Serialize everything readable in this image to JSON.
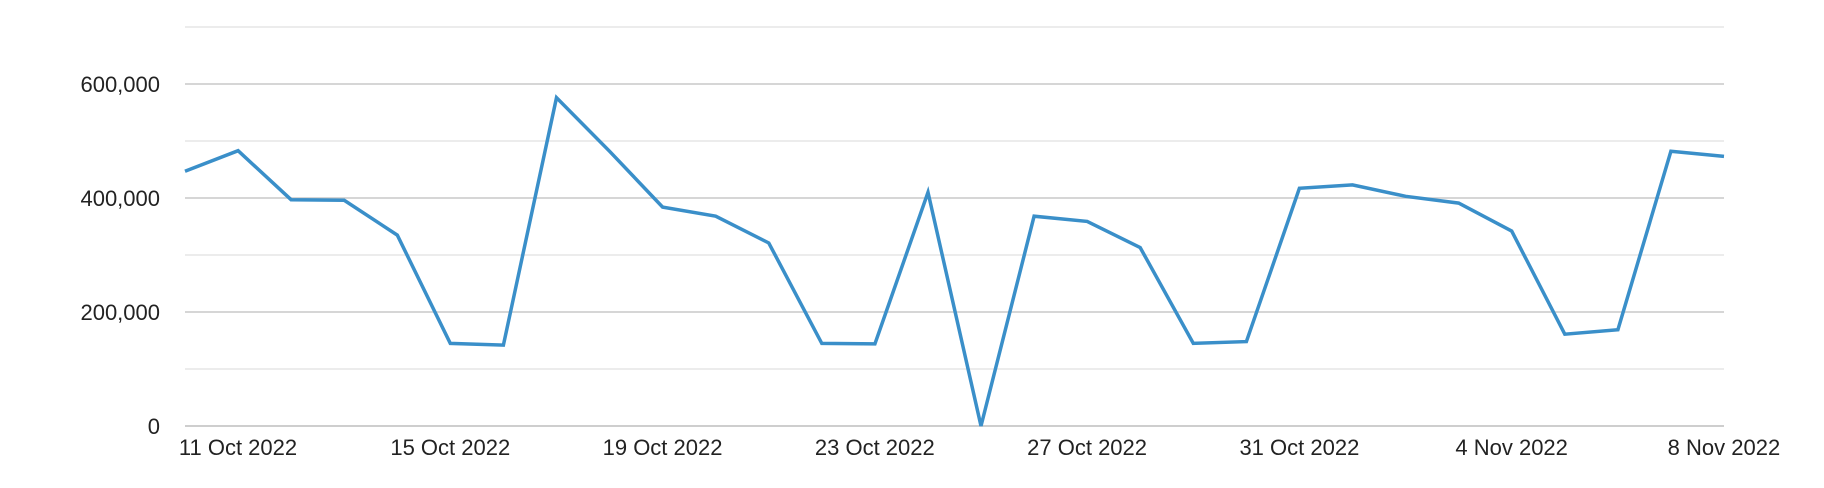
{
  "chart_data": {
    "type": "line",
    "title": "",
    "xlabel": "",
    "ylabel": "",
    "x": [
      "11 Oct 2022",
      "12 Oct 2022",
      "13 Oct 2022",
      "14 Oct 2022",
      "15 Oct 2022",
      "16 Oct 2022",
      "17 Oct 2022",
      "18 Oct 2022",
      "19 Oct 2022",
      "20 Oct 2022",
      "21 Oct 2022",
      "22 Oct 2022",
      "23 Oct 2022",
      "24 Oct 2022",
      "25 Oct 2022",
      "26 Oct 2022",
      "27 Oct 2022",
      "28 Oct 2022",
      "29 Oct 2022",
      "30 Oct 2022",
      "31 Oct 2022",
      "1 Nov 2022",
      "2 Nov 2022",
      "3 Nov 2022",
      "4 Nov 2022",
      "5 Nov 2022",
      "6 Nov 2022",
      "7 Nov 2022",
      "8 Nov 2022",
      "9 Nov 2022"
    ],
    "series": [
      {
        "color": "#3a8fc9",
        "values": [
          447000,
          483000,
          397000,
          396000,
          335000,
          145000,
          142000,
          576000,
          482000,
          384000,
          368000,
          321000,
          145000,
          144000,
          410000,
          0,
          368000,
          359000,
          313000,
          145000,
          148000,
          417000,
          423000,
          403000,
          391000,
          342000,
          161000,
          169000,
          482000,
          473000
        ]
      }
    ],
    "ylim": [
      0,
      700000
    ],
    "y_ticks": [
      {
        "value": 0,
        "label": "0"
      },
      {
        "value": 200000,
        "label": "200,000"
      },
      {
        "value": 400000,
        "label": "400,000"
      },
      {
        "value": 600000,
        "label": "600,000"
      }
    ],
    "minor_grid_values": [
      100000,
      300000,
      500000,
      700000
    ],
    "x_tick_labels": [
      {
        "index": 0,
        "label": "11 Oct 2022"
      },
      {
        "index": 4,
        "label": "15 Oct 2022"
      },
      {
        "index": 8,
        "label": "19 Oct 2022"
      },
      {
        "index": 12,
        "label": "23 Oct 2022"
      },
      {
        "index": 16,
        "label": "27 Oct 2022"
      },
      {
        "index": 20,
        "label": "31 Oct 2022"
      },
      {
        "index": 24,
        "label": "4 Nov 2022"
      },
      {
        "index": 28,
        "label": "8 Nov 2022"
      }
    ],
    "grid": true,
    "legend": "none"
  }
}
